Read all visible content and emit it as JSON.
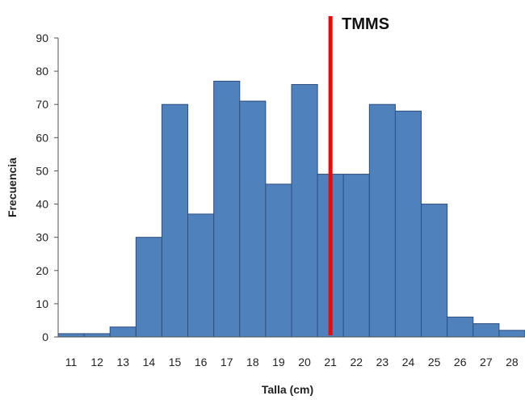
{
  "chart_data": {
    "type": "bar",
    "categories": [
      "11",
      "12",
      "13",
      "14",
      "15",
      "16",
      "17",
      "18",
      "19",
      "20",
      "21",
      "22",
      "23",
      "24",
      "25",
      "26",
      "27",
      "28"
    ],
    "values": [
      1,
      1,
      3,
      30,
      70,
      37,
      77,
      71,
      46,
      76,
      49,
      49,
      70,
      68,
      40,
      6,
      4,
      2
    ],
    "xlabel": "Talla (cm)",
    "ylabel": "Frecuencia",
    "ylim": [
      0,
      90
    ],
    "yticks": [
      0,
      10,
      20,
      30,
      40,
      50,
      60,
      70,
      80,
      90
    ],
    "grid": false,
    "bar_color": "#4f81bd",
    "bar_edge_color": "#2f4f7f",
    "reference_line": {
      "label": "TMMS",
      "x": 21.5,
      "color": "#ff0000"
    }
  }
}
